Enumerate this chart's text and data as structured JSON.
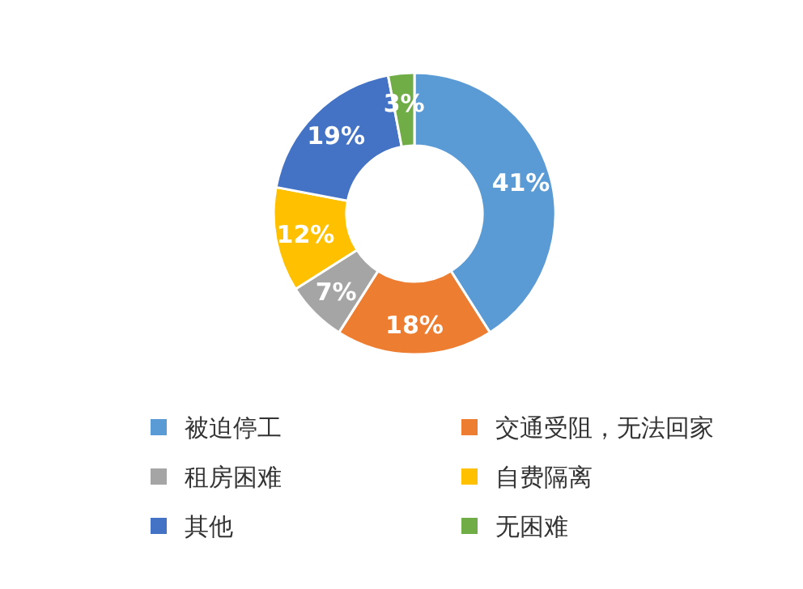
{
  "chart_data": {
    "type": "donut",
    "categories": [
      "被迫停工",
      "交通受阻，无法回家",
      "租房困难",
      "自费隔离",
      "其他",
      "无困难"
    ],
    "values": [
      41,
      18,
      7,
      12,
      19,
      3
    ],
    "colors": [
      "#5b9bd5",
      "#ed7d31",
      "#a5a5a5",
      "#ffc000",
      "#4472c4",
      "#70ad47"
    ],
    "value_labels": [
      "41%",
      "18%",
      "7%",
      "12%",
      "19%",
      "3%"
    ],
    "legend": "bottom"
  }
}
